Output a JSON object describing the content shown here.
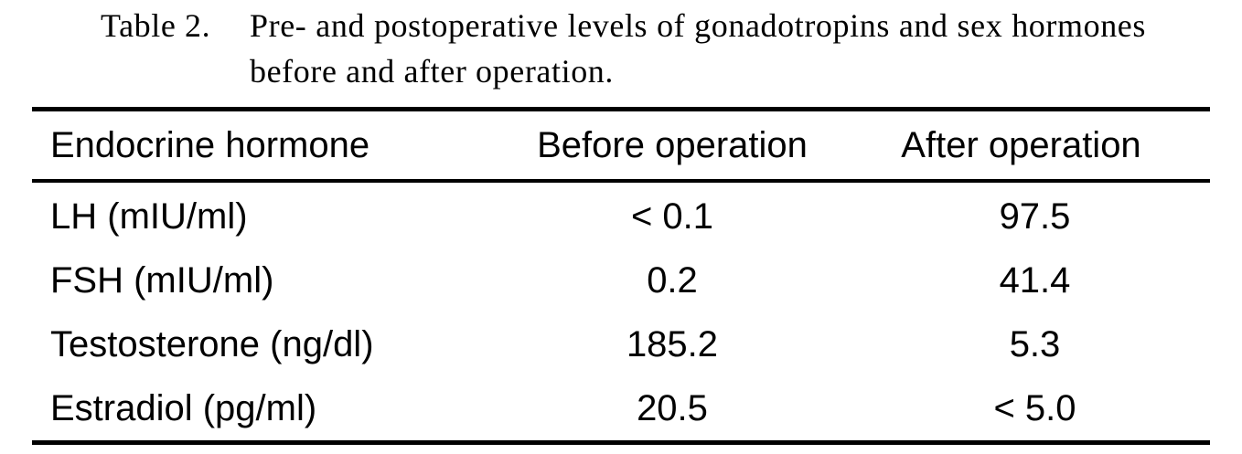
{
  "caption": {
    "label": "Table 2.",
    "text": "Pre- and postoperative levels of gonadotropins and sex hormones before and after operation."
  },
  "table": {
    "header": [
      "Endocrine hormone",
      "Before operation",
      "After operation"
    ],
    "rows": [
      [
        "LH (mIU/ml)",
        "< 0.1",
        "97.5"
      ],
      [
        "FSH (mIU/ml)",
        "0.2",
        "41.4"
      ],
      [
        "Testosterone (ng/dl)",
        "185.2",
        "5.3"
      ],
      [
        "Estradiol (pg/ml)",
        "20.5",
        "< 5.0"
      ]
    ]
  }
}
